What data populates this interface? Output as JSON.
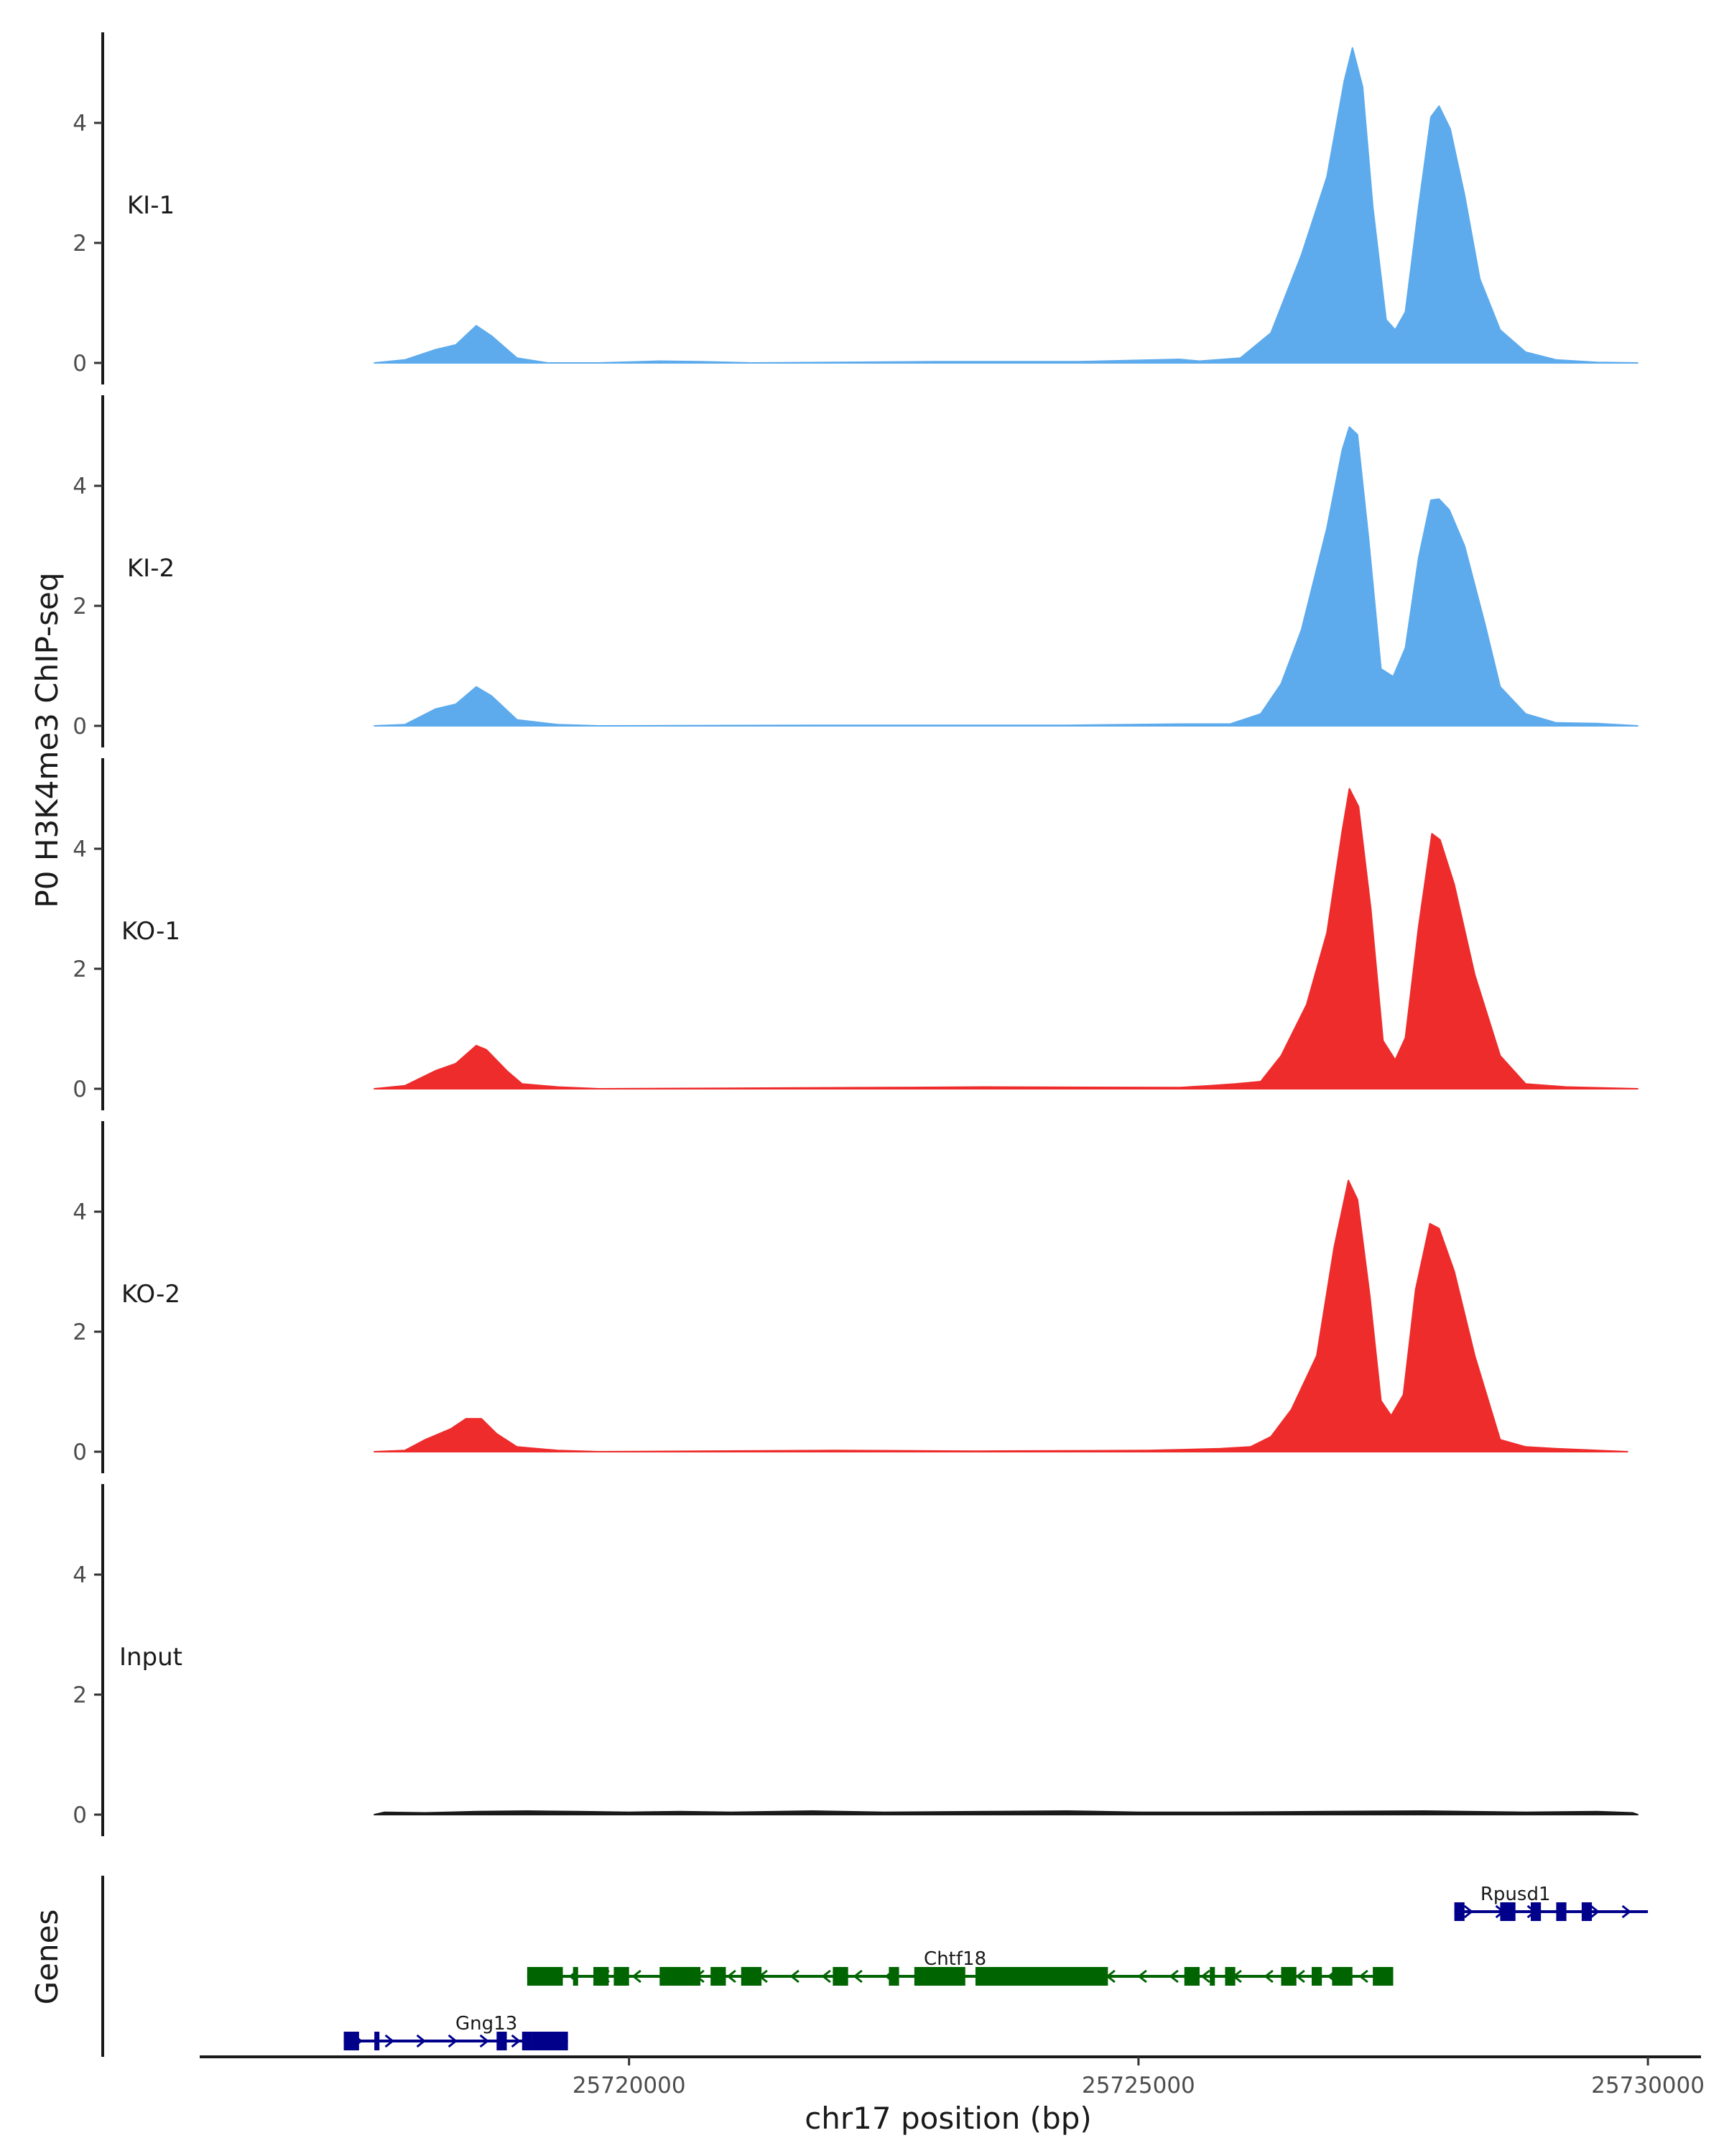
{
  "chart_data": {
    "type": "area",
    "y_axis_title": "P0 H3K4me3 ChIP-seq",
    "genes_axis_title": "Genes",
    "x_axis_title": "chr17 position (bp)",
    "x_range": [
      25715800,
      25730500
    ],
    "x_ticks": [
      {
        "value": 25720000,
        "label": "25720000"
      },
      {
        "value": 25725000,
        "label": "25725000"
      },
      {
        "value": 25730000,
        "label": "25730000"
      }
    ],
    "y_range": [
      0,
      5.5
    ],
    "y_ticks": [
      {
        "value": 0,
        "label": "0"
      },
      {
        "value": 2,
        "label": "2"
      },
      {
        "value": 4,
        "label": "4"
      }
    ],
    "signal_start": 25717500,
    "signal_end": 25729900,
    "tracks": [
      {
        "name": "KI-1",
        "color": "#5DABEC",
        "points": [
          [
            25717500,
            0
          ],
          [
            25717800,
            0.05
          ],
          [
            25718100,
            0.22
          ],
          [
            25718300,
            0.3
          ],
          [
            25718500,
            0.62
          ],
          [
            25718650,
            0.45
          ],
          [
            25718900,
            0.08
          ],
          [
            25719200,
            0
          ],
          [
            25719700,
            0
          ],
          [
            25720300,
            0.03
          ],
          [
            25720700,
            0.02
          ],
          [
            25721200,
            0
          ],
          [
            25723000,
            0.02
          ],
          [
            25724400,
            0.02
          ],
          [
            25725400,
            0.06
          ],
          [
            25725600,
            0.03
          ],
          [
            25726000,
            0.08
          ],
          [
            25726300,
            0.5
          ],
          [
            25726600,
            1.8
          ],
          [
            25726850,
            3.1
          ],
          [
            25727020,
            4.7
          ],
          [
            25727100,
            5.25
          ],
          [
            25727200,
            4.6
          ],
          [
            25727300,
            2.6
          ],
          [
            25727430,
            0.72
          ],
          [
            25727520,
            0.55
          ],
          [
            25727620,
            0.85
          ],
          [
            25727750,
            2.6
          ],
          [
            25727870,
            4.1
          ],
          [
            25727950,
            4.28
          ],
          [
            25728060,
            3.9
          ],
          [
            25728200,
            2.8
          ],
          [
            25728350,
            1.4
          ],
          [
            25728550,
            0.55
          ],
          [
            25728800,
            0.18
          ],
          [
            25729100,
            0.05
          ],
          [
            25729500,
            0.01
          ],
          [
            25729900,
            0
          ]
        ]
      },
      {
        "name": "KI-2",
        "color": "#5DABEC",
        "points": [
          [
            25717500,
            0
          ],
          [
            25717800,
            0.02
          ],
          [
            25718100,
            0.28
          ],
          [
            25718300,
            0.36
          ],
          [
            25718500,
            0.65
          ],
          [
            25718650,
            0.5
          ],
          [
            25718900,
            0.1
          ],
          [
            25719300,
            0.02
          ],
          [
            25719700,
            0
          ],
          [
            25722000,
            0.01
          ],
          [
            25724300,
            0.01
          ],
          [
            25725400,
            0.03
          ],
          [
            25725900,
            0.03
          ],
          [
            25726200,
            0.2
          ],
          [
            25726400,
            0.7
          ],
          [
            25726600,
            1.6
          ],
          [
            25726850,
            3.3
          ],
          [
            25727000,
            4.6
          ],
          [
            25727070,
            4.98
          ],
          [
            25727150,
            4.85
          ],
          [
            25727260,
            3.1
          ],
          [
            25727380,
            0.95
          ],
          [
            25727500,
            0.82
          ],
          [
            25727620,
            1.3
          ],
          [
            25727750,
            2.8
          ],
          [
            25727870,
            3.76
          ],
          [
            25727950,
            3.78
          ],
          [
            25728050,
            3.6
          ],
          [
            25728200,
            3.0
          ],
          [
            25728400,
            1.7
          ],
          [
            25728550,
            0.65
          ],
          [
            25728800,
            0.2
          ],
          [
            25729100,
            0.05
          ],
          [
            25729500,
            0.04
          ],
          [
            25729900,
            0
          ]
        ]
      },
      {
        "name": "KO-1",
        "color": "#EE2C2C",
        "points": [
          [
            25717500,
            0
          ],
          [
            25717800,
            0.05
          ],
          [
            25718100,
            0.3
          ],
          [
            25718300,
            0.42
          ],
          [
            25718500,
            0.72
          ],
          [
            25718600,
            0.65
          ],
          [
            25718800,
            0.3
          ],
          [
            25718950,
            0.08
          ],
          [
            25719300,
            0.03
          ],
          [
            25719700,
            0
          ],
          [
            25722500,
            0.02
          ],
          [
            25723500,
            0.03
          ],
          [
            25725400,
            0.02
          ],
          [
            25725700,
            0.05
          ],
          [
            25725950,
            0.08
          ],
          [
            25726200,
            0.12
          ],
          [
            25726400,
            0.55
          ],
          [
            25726650,
            1.4
          ],
          [
            25726850,
            2.6
          ],
          [
            25727000,
            4.3
          ],
          [
            25727070,
            5.0
          ],
          [
            25727160,
            4.7
          ],
          [
            25727280,
            3.0
          ],
          [
            25727400,
            0.8
          ],
          [
            25727520,
            0.48
          ],
          [
            25727620,
            0.85
          ],
          [
            25727750,
            2.7
          ],
          [
            25727880,
            4.25
          ],
          [
            25727960,
            4.15
          ],
          [
            25728100,
            3.4
          ],
          [
            25728300,
            1.9
          ],
          [
            25728550,
            0.55
          ],
          [
            25728800,
            0.08
          ],
          [
            25729200,
            0.03
          ],
          [
            25729900,
            0
          ]
        ]
      },
      {
        "name": "KO-2",
        "color": "#EE2C2C",
        "points": [
          [
            25717500,
            0
          ],
          [
            25717800,
            0.02
          ],
          [
            25718000,
            0.2
          ],
          [
            25718250,
            0.38
          ],
          [
            25718400,
            0.55
          ],
          [
            25718550,
            0.55
          ],
          [
            25718700,
            0.3
          ],
          [
            25718900,
            0.08
          ],
          [
            25719300,
            0.02
          ],
          [
            25719700,
            0
          ],
          [
            25722000,
            0.02
          ],
          [
            25723400,
            0.01
          ],
          [
            25725100,
            0.02
          ],
          [
            25725800,
            0.05
          ],
          [
            25726100,
            0.08
          ],
          [
            25726300,
            0.25
          ],
          [
            25726500,
            0.7
          ],
          [
            25726750,
            1.6
          ],
          [
            25726920,
            3.4
          ],
          [
            25727060,
            4.52
          ],
          [
            25727150,
            4.2
          ],
          [
            25727270,
            2.6
          ],
          [
            25727380,
            0.85
          ],
          [
            25727480,
            0.6
          ],
          [
            25727600,
            0.95
          ],
          [
            25727720,
            2.7
          ],
          [
            25727860,
            3.8
          ],
          [
            25727950,
            3.72
          ],
          [
            25728100,
            3.0
          ],
          [
            25728300,
            1.6
          ],
          [
            25728550,
            0.2
          ],
          [
            25728800,
            0.08
          ],
          [
            25729100,
            0.05
          ],
          [
            25729800,
            0
          ]
        ]
      },
      {
        "name": "Input",
        "color": "#1a1a1a",
        "points": [
          [
            25717500,
            0
          ],
          [
            25717600,
            0.04
          ],
          [
            25718000,
            0.03
          ],
          [
            25718500,
            0.05
          ],
          [
            25719000,
            0.06
          ],
          [
            25719500,
            0.05
          ],
          [
            25720000,
            0.04
          ],
          [
            25720500,
            0.05
          ],
          [
            25721000,
            0.04
          ],
          [
            25721800,
            0.06
          ],
          [
            25722500,
            0.04
          ],
          [
            25723500,
            0.05
          ],
          [
            25724300,
            0.06
          ],
          [
            25725000,
            0.04
          ],
          [
            25725800,
            0.04
          ],
          [
            25726800,
            0.05
          ],
          [
            25727800,
            0.06
          ],
          [
            25728800,
            0.04
          ],
          [
            25729500,
            0.05
          ],
          [
            25729850,
            0.03
          ],
          [
            25729900,
            0
          ]
        ]
      }
    ],
    "genes": [
      {
        "name": "Rpusd1",
        "color": "#00008B",
        "strand": "+",
        "row": 0,
        "start": 25728100,
        "end": 25730000,
        "label_pos": 25728700,
        "exons": [
          [
            25728100,
            25728200
          ],
          [
            25728550,
            25728700
          ],
          [
            25728850,
            25728950
          ],
          [
            25729100,
            25729200
          ],
          [
            25729350,
            25729450
          ]
        ]
      },
      {
        "name": "Chtf18",
        "color": "#006400",
        "strand": "-",
        "row": 1,
        "start": 25719000,
        "end": 25727500,
        "label_pos": 25723200,
        "exons": [
          [
            25719000,
            25719350
          ],
          [
            25719450,
            25719500
          ],
          [
            25719650,
            25719800
          ],
          [
            25719850,
            25720000
          ],
          [
            25720300,
            25720700
          ],
          [
            25720800,
            25720950
          ],
          [
            25721100,
            25721300
          ],
          [
            25722000,
            25722150
          ],
          [
            25722550,
            25722650
          ],
          [
            25722800,
            25723300
          ],
          [
            25723400,
            25724700
          ],
          [
            25725450,
            25725600
          ],
          [
            25725700,
            25725750
          ],
          [
            25725850,
            25725950
          ],
          [
            25726400,
            25726550
          ],
          [
            25726700,
            25726800
          ],
          [
            25726900,
            25727100
          ],
          [
            25727300,
            25727500
          ]
        ]
      },
      {
        "name": "Gng13",
        "color": "#00008B",
        "strand": "+",
        "row": 2,
        "start": 25717200,
        "end": 25719400,
        "label_pos": 25718600,
        "exons": [
          [
            25717200,
            25717350
          ],
          [
            25717500,
            25717550
          ],
          [
            25718700,
            25718800
          ],
          [
            25718950,
            25719050
          ],
          [
            25719050,
            25719400
          ]
        ]
      }
    ]
  }
}
